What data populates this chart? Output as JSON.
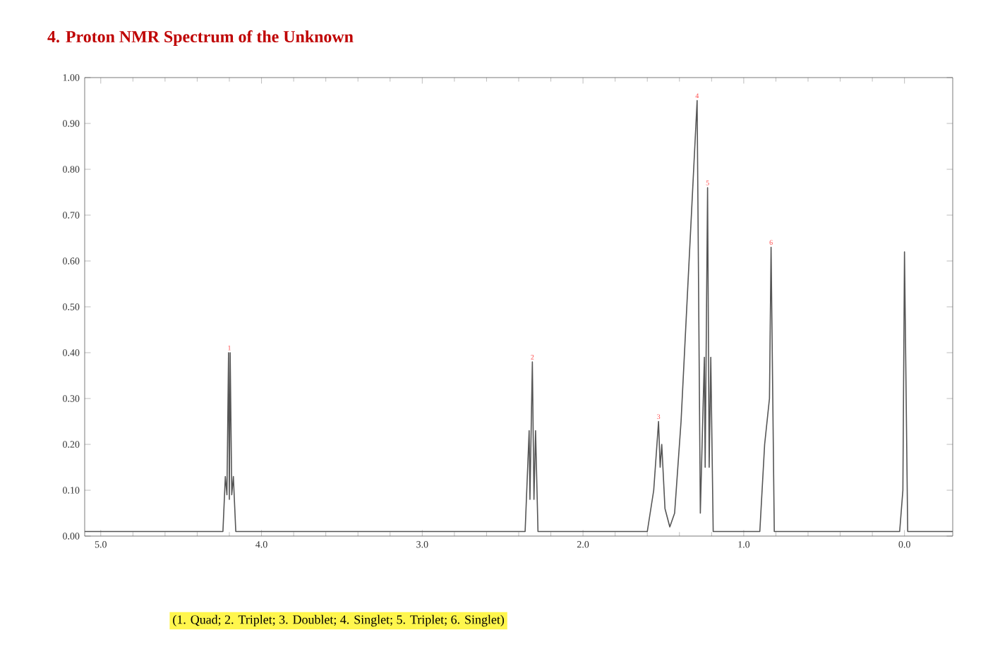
{
  "chart_data": {
    "type": "line",
    "title": "4. Proton NMR Spectrum of the Unknown",
    "color": "#555555",
    "x": [
      5.1,
      4.24,
      4.225,
      4.215,
      4.205,
      4.2,
      4.195,
      4.185,
      4.175,
      4.16,
      2.36,
      2.335,
      2.33,
      2.315,
      2.305,
      2.295,
      2.28,
      1.6,
      1.56,
      1.53,
      1.52,
      1.51,
      1.49,
      1.46,
      1.43,
      1.39,
      1.29,
      1.27,
      1.245,
      1.24,
      1.225,
      1.215,
      1.205,
      1.19,
      0.9,
      0.87,
      0.84,
      0.83,
      0.81,
      0.03,
      0.01,
      0.0,
      -0.02,
      -0.3
    ],
    "values": [
      0.01,
      0.01,
      0.13,
      0.09,
      0.4,
      0.08,
      0.4,
      0.09,
      0.13,
      0.01,
      0.01,
      0.23,
      0.08,
      0.38,
      0.08,
      0.23,
      0.01,
      0.01,
      0.1,
      0.25,
      0.15,
      0.2,
      0.06,
      0.02,
      0.05,
      0.25,
      0.95,
      0.05,
      0.39,
      0.15,
      0.76,
      0.15,
      0.39,
      0.01,
      0.01,
      0.2,
      0.3,
      0.63,
      0.01,
      0.01,
      0.1,
      0.62,
      0.01,
      0.01
    ],
    "xlim": [
      5.1,
      -0.3
    ],
    "xticks": [
      {
        "value": 5,
        "label": "5.0"
      },
      {
        "value": 4,
        "label": "4.0"
      },
      {
        "value": 3,
        "label": "3.0"
      },
      {
        "value": 2,
        "label": "2.0"
      },
      {
        "value": 1,
        "label": "1.0"
      },
      {
        "value": 0,
        "label": "0.0"
      }
    ],
    "ylim": [
      0,
      1
    ],
    "yticks": [
      {
        "value": 0,
        "label": "0.00"
      },
      {
        "value": 0.1,
        "label": "0.10"
      },
      {
        "value": 0.2,
        "label": "0.20"
      },
      {
        "value": 0.3,
        "label": "0.30"
      },
      {
        "value": 0.4,
        "label": "0.40"
      },
      {
        "value": 0.5,
        "label": "0.50"
      },
      {
        "value": 0.6,
        "label": "0.60"
      },
      {
        "value": 0.7,
        "label": "0.70"
      },
      {
        "value": 0.8,
        "label": "0.80"
      },
      {
        "value": 0.9,
        "label": "0.90"
      },
      {
        "value": 1,
        "label": "1.00"
      }
    ],
    "annotations": [
      {
        "text": "1",
        "x": 4.2,
        "y": 0.4
      },
      {
        "text": "2",
        "x": 2.315,
        "y": 0.38
      },
      {
        "text": "3",
        "x": 1.53,
        "y": 0.25
      },
      {
        "text": "4",
        "x": 1.29,
        "y": 0.95
      },
      {
        "text": "5",
        "x": 1.225,
        "y": 0.76
      },
      {
        "text": "6",
        "x": 0.83,
        "y": 0.63
      },
      "(1. Quad; 2. Triplet; 3. Doublet; 4. Singlet; 5. Triplet; 6. Singlet)"
    ]
  }
}
